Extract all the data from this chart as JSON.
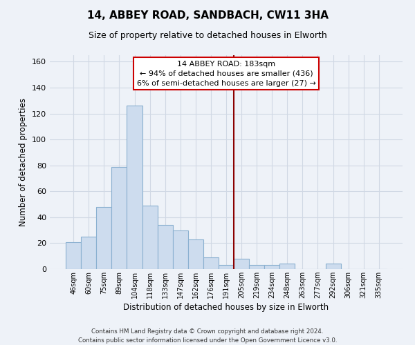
{
  "title": "14, ABBEY ROAD, SANDBACH, CW11 3HA",
  "subtitle": "Size of property relative to detached houses in Elworth",
  "xlabel": "Distribution of detached houses by size in Elworth",
  "ylabel": "Number of detached properties",
  "bar_labels": [
    "46sqm",
    "60sqm",
    "75sqm",
    "89sqm",
    "104sqm",
    "118sqm",
    "133sqm",
    "147sqm",
    "162sqm",
    "176sqm",
    "191sqm",
    "205sqm",
    "219sqm",
    "234sqm",
    "248sqm",
    "263sqm",
    "277sqm",
    "292sqm",
    "306sqm",
    "321sqm",
    "335sqm"
  ],
  "bar_values": [
    21,
    25,
    48,
    79,
    126,
    49,
    34,
    30,
    23,
    9,
    3,
    8,
    3,
    3,
    4,
    0,
    0,
    4,
    0,
    0,
    0
  ],
  "bar_color": "#cddcee",
  "bar_edge_color": "#8ab0d0",
  "property_line_x": 10.5,
  "property_label": "14 ABBEY ROAD: 183sqm",
  "annotation_line1": "← 94% of detached houses are smaller (436)",
  "annotation_line2": "6% of semi-detached houses are larger (27) →",
  "annotation_box_color": "#ffffff",
  "annotation_box_edge": "#cc0000",
  "line_color": "#8b0000",
  "ylim": [
    0,
    165
  ],
  "yticks": [
    0,
    20,
    40,
    60,
    80,
    100,
    120,
    140,
    160
  ],
  "footer1": "Contains HM Land Registry data © Crown copyright and database right 2024.",
  "footer2": "Contains public sector information licensed under the Open Government Licence v3.0.",
  "background_color": "#eef2f8"
}
